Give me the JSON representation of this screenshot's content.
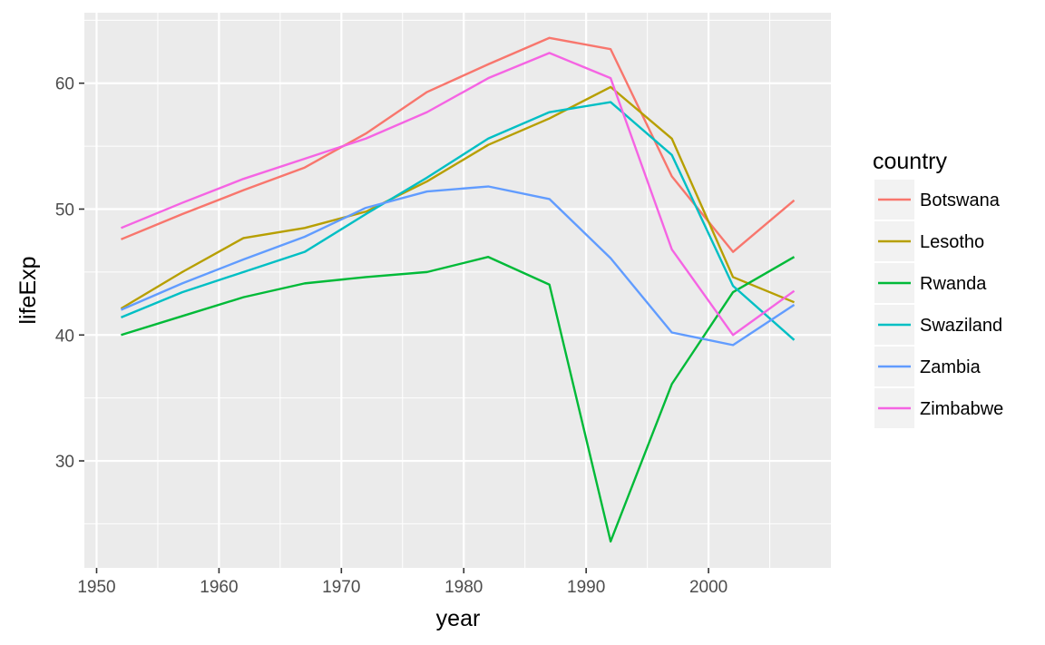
{
  "chart_data": {
    "type": "line",
    "xlabel": "year",
    "ylabel": "lifeExp",
    "xlim": [
      1949,
      2010
    ],
    "ylim": [
      21.5,
      65.6
    ],
    "x_ticks": [
      1950,
      1960,
      1970,
      1980,
      1990,
      2000
    ],
    "y_ticks": [
      30,
      40,
      50,
      60
    ],
    "x_tick_labels": [
      "1950",
      "1960",
      "1970",
      "1980",
      "1990",
      "2000"
    ],
    "y_tick_labels": [
      "30",
      "40",
      "50",
      "60"
    ],
    "grid": true,
    "legend": {
      "title": "country",
      "placement": "right"
    },
    "x": [
      1952,
      1957,
      1962,
      1967,
      1972,
      1977,
      1982,
      1987,
      1992,
      1997,
      2002,
      2007
    ],
    "series": [
      {
        "name": "Botswana",
        "color": "#F8766D",
        "values": [
          47.6,
          49.6,
          51.5,
          53.3,
          56.0,
          59.3,
          61.5,
          63.6,
          62.7,
          52.6,
          46.6,
          50.7
        ]
      },
      {
        "name": "Lesotho",
        "color": "#B79F00",
        "values": [
          42.1,
          45.0,
          47.7,
          48.5,
          49.8,
          52.2,
          55.1,
          57.2,
          59.7,
          55.6,
          44.6,
          42.6
        ]
      },
      {
        "name": "Rwanda",
        "color": "#00BA38",
        "values": [
          40.0,
          41.5,
          43.0,
          44.1,
          44.6,
          45.0,
          46.2,
          44.0,
          23.6,
          36.1,
          43.4,
          46.2
        ]
      },
      {
        "name": "Swaziland",
        "color": "#00BFC4",
        "values": [
          41.4,
          43.4,
          45.0,
          46.6,
          49.6,
          52.5,
          55.6,
          57.7,
          58.5,
          54.3,
          43.9,
          39.6
        ]
      },
      {
        "name": "Zambia",
        "color": "#619CFF",
        "values": [
          42.0,
          44.1,
          46.0,
          47.8,
          50.1,
          51.4,
          51.8,
          50.8,
          46.1,
          40.2,
          39.2,
          42.4
        ]
      },
      {
        "name": "Zimbabwe",
        "color": "#F564E3",
        "values": [
          48.5,
          50.5,
          52.4,
          54.0,
          55.6,
          57.7,
          60.4,
          62.4,
          60.4,
          46.8,
          40.0,
          43.5
        ]
      }
    ]
  }
}
